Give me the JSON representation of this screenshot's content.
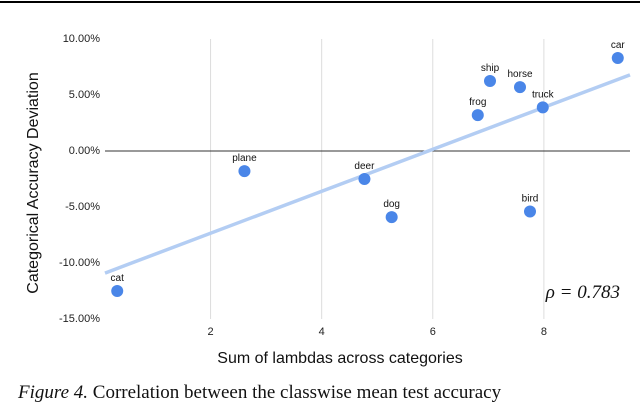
{
  "chart_data": {
    "type": "scatter",
    "x_label": "Sum of lambdas across categories",
    "y_label": "Categorical Accuracy Deviation",
    "labels": [
      "cat",
      "plane",
      "deer",
      "dog",
      "frog",
      "ship",
      "horse",
      "truck",
      "bird",
      "car"
    ],
    "x": [
      0.32,
      2.61,
      4.77,
      5.26,
      6.81,
      7.03,
      7.57,
      7.98,
      7.75,
      9.33
    ],
    "values": [
      -12.5,
      -1.8,
      -2.5,
      -5.9,
      3.2,
      6.25,
      5.7,
      3.9,
      -5.4,
      8.3
    ],
    "color": "#4a86e8",
    "trendline": {
      "x": [
        0.1,
        9.55
      ],
      "values": [
        -10.9,
        6.8
      ],
      "color": "#b3cdf3"
    },
    "xlim": [
      0.1,
      9.55
    ],
    "ylim": [
      -15,
      10
    ],
    "xticks": [
      2,
      4,
      6,
      8
    ],
    "yticks": [
      {
        "value": -15,
        "label": "-15.00%"
      },
      {
        "value": -10,
        "label": "-10.00%"
      },
      {
        "value": -5,
        "label": "-5.00%"
      },
      {
        "value": 0,
        "label": "0.00%"
      },
      {
        "value": 5,
        "label": "5.00%"
      },
      {
        "value": 10,
        "label": "10.00%"
      }
    ],
    "grid": true,
    "annotation": "ρ = 0.783",
    "caption_label": "Figure 4.",
    "caption_text": "Correlation between the classwise mean test accuracy"
  }
}
